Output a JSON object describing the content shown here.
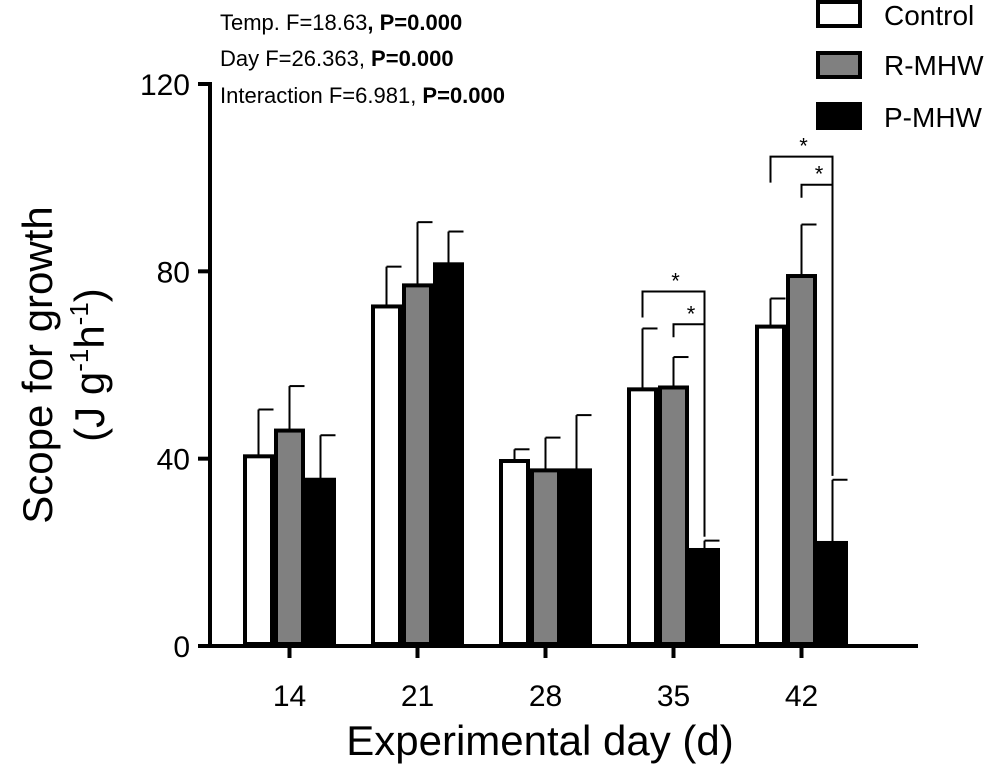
{
  "chart_data": {
    "type": "bar",
    "title": "",
    "xlabel": "Experimental day (d)",
    "ylabel": {
      "main": "Scope for growth",
      "unit_prefix": "(J g",
      "unit_sup1": "-1",
      "unit_mid": "h",
      "unit_sup2": "-1",
      "unit_suffix": ")"
    },
    "ylim": [
      0,
      120
    ],
    "yticks": [
      0,
      40,
      80,
      120
    ],
    "categories": [
      "14",
      "21",
      "28",
      "35",
      "42"
    ],
    "series": [
      {
        "name": "Control",
        "color": "#ffffff",
        "values": [
          40.5,
          72.5,
          39.5,
          54.8,
          68.2
        ],
        "errors": [
          10,
          8.5,
          2.5,
          13,
          6
        ]
      },
      {
        "name": "R-MHW",
        "color": "#808080",
        "values": [
          46,
          77,
          37.5,
          55.2,
          79
        ],
        "errors": [
          9.5,
          13.5,
          7,
          6.5,
          11
        ]
      },
      {
        "name": "P-MHW",
        "color": "#000000",
        "values": [
          35.5,
          81.5,
          37.5,
          20.5,
          22
        ],
        "errors": [
          9.5,
          7,
          11.8,
          2,
          13.5
        ]
      }
    ],
    "legend": {
      "position": "top-right",
      "entries": [
        "Control",
        "R-MHW",
        "P-MHW"
      ]
    },
    "stats": [
      {
        "label": "Temp. F=18.63",
        "sep": ", ",
        "p": "P=0.000"
      },
      {
        "label": "Day F=26.363",
        "sep": ", ",
        "p": "P=0.000"
      },
      {
        "label": "Interaction F=6.981",
        "sep": ", ",
        "p": "P=0.000"
      }
    ],
    "significance": [
      {
        "category": 3,
        "from_series": 0,
        "to_series": 2,
        "label": "*"
      },
      {
        "category": 3,
        "from_series": 1,
        "to_series": 2,
        "label": "*"
      },
      {
        "category": 4,
        "from_series": 0,
        "to_series": 2,
        "label": "*"
      },
      {
        "category": 4,
        "from_series": 1,
        "to_series": 2,
        "label": "*"
      }
    ]
  }
}
